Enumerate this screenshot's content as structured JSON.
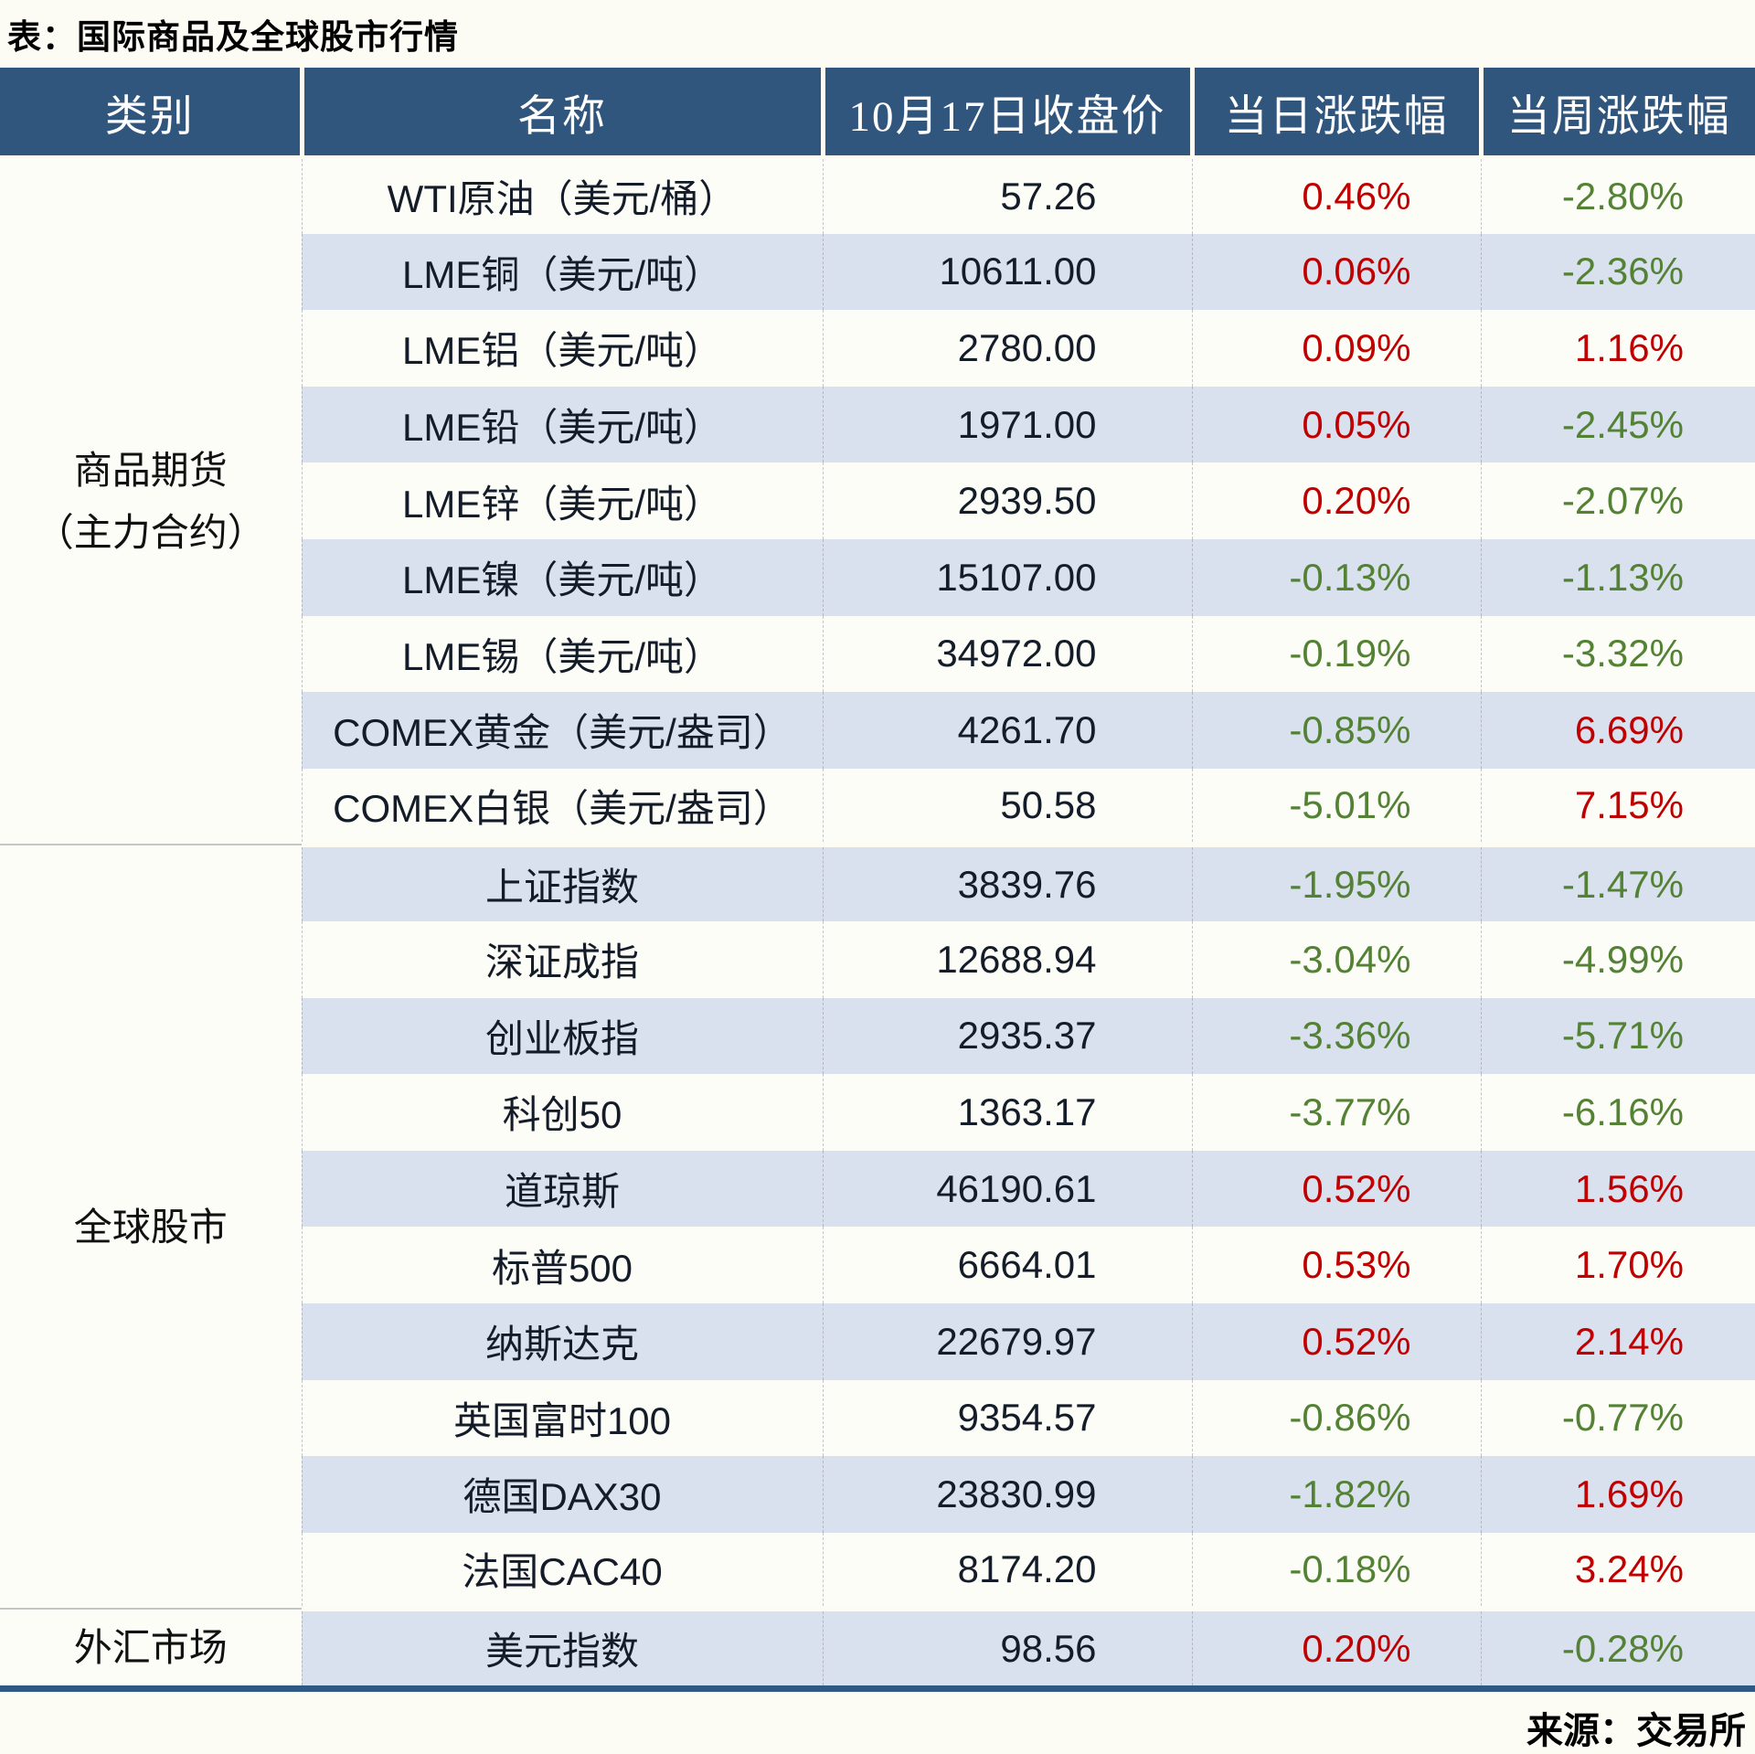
{
  "title": "表：国际商品及全球股市行情",
  "colors": {
    "header_bg": "#31567E",
    "header_text": "#FFFFFF",
    "row_stripe_blue": "#D9E1EF",
    "row_plain": "#FDFDF8",
    "positive_red": "#C00000",
    "negative_green": "#548235",
    "bottom_rule_blue": "#2E5984"
  },
  "chart_data": {
    "type": "table",
    "title": "表：国际商品及全球股市行情",
    "columns": [
      "类别",
      "名称",
      "10月17日收盘价",
      "当日涨跌幅",
      "当周涨跌幅"
    ],
    "color_rule": "正值红色(#C00000)，负值绿色(#548235)",
    "sections": [
      {
        "category": "商品期货（主力合约）",
        "category_lines": [
          "商品期货",
          "（主力合约）"
        ],
        "rows": [
          {
            "name": "WTI原油（美元/桶）",
            "close": "57.26",
            "daily": "0.46%",
            "weekly": "-2.80%"
          },
          {
            "name": "LME铜（美元/吨）",
            "close": "10611.00",
            "daily": "0.06%",
            "weekly": "-2.36%"
          },
          {
            "name": "LME铝（美元/吨）",
            "close": "2780.00",
            "daily": "0.09%",
            "weekly": "1.16%"
          },
          {
            "name": "LME铅（美元/吨）",
            "close": "1971.00",
            "daily": "0.05%",
            "weekly": "-2.45%"
          },
          {
            "name": "LME锌（美元/吨）",
            "close": "2939.50",
            "daily": "0.20%",
            "weekly": "-2.07%"
          },
          {
            "name": "LME镍（美元/吨）",
            "close": "15107.00",
            "daily": "-0.13%",
            "weekly": "-1.13%"
          },
          {
            "name": "LME锡（美元/吨）",
            "close": "34972.00",
            "daily": "-0.19%",
            "weekly": "-3.32%"
          },
          {
            "name": "COMEX黄金（美元/盎司）",
            "close": "4261.70",
            "daily": "-0.85%",
            "weekly": "6.69%"
          },
          {
            "name": "COMEX白银（美元/盎司）",
            "close": "50.58",
            "daily": "-5.01%",
            "weekly": "7.15%"
          }
        ]
      },
      {
        "category": "全球股市",
        "category_lines": [
          "全球股市"
        ],
        "rows": [
          {
            "name": "上证指数",
            "close": "3839.76",
            "daily": "-1.95%",
            "weekly": "-1.47%"
          },
          {
            "name": "深证成指",
            "close": "12688.94",
            "daily": "-3.04%",
            "weekly": "-4.99%"
          },
          {
            "name": "创业板指",
            "close": "2935.37",
            "daily": "-3.36%",
            "weekly": "-5.71%"
          },
          {
            "name": "科创50",
            "close": "1363.17",
            "daily": "-3.77%",
            "weekly": "-6.16%"
          },
          {
            "name": "道琼斯",
            "close": "46190.61",
            "daily": "0.52%",
            "weekly": "1.56%"
          },
          {
            "name": "标普500",
            "close": "6664.01",
            "daily": "0.53%",
            "weekly": "1.70%"
          },
          {
            "name": "纳斯达克",
            "close": "22679.97",
            "daily": "0.52%",
            "weekly": "2.14%"
          },
          {
            "name": "英国富时100",
            "close": "9354.57",
            "daily": "-0.86%",
            "weekly": "-0.77%"
          },
          {
            "name": "德国DAX30",
            "close": "23830.99",
            "daily": "-1.82%",
            "weekly": "1.69%"
          },
          {
            "name": "法国CAC40",
            "close": "8174.20",
            "daily": "-0.18%",
            "weekly": "3.24%"
          }
        ]
      },
      {
        "category": "外汇市场",
        "category_lines": [
          "外汇市场"
        ],
        "rows": [
          {
            "name": "美元指数",
            "close": "98.56",
            "daily": "0.20%",
            "weekly": "-0.28%"
          }
        ]
      }
    ],
    "source_note": "来源：交易所"
  }
}
